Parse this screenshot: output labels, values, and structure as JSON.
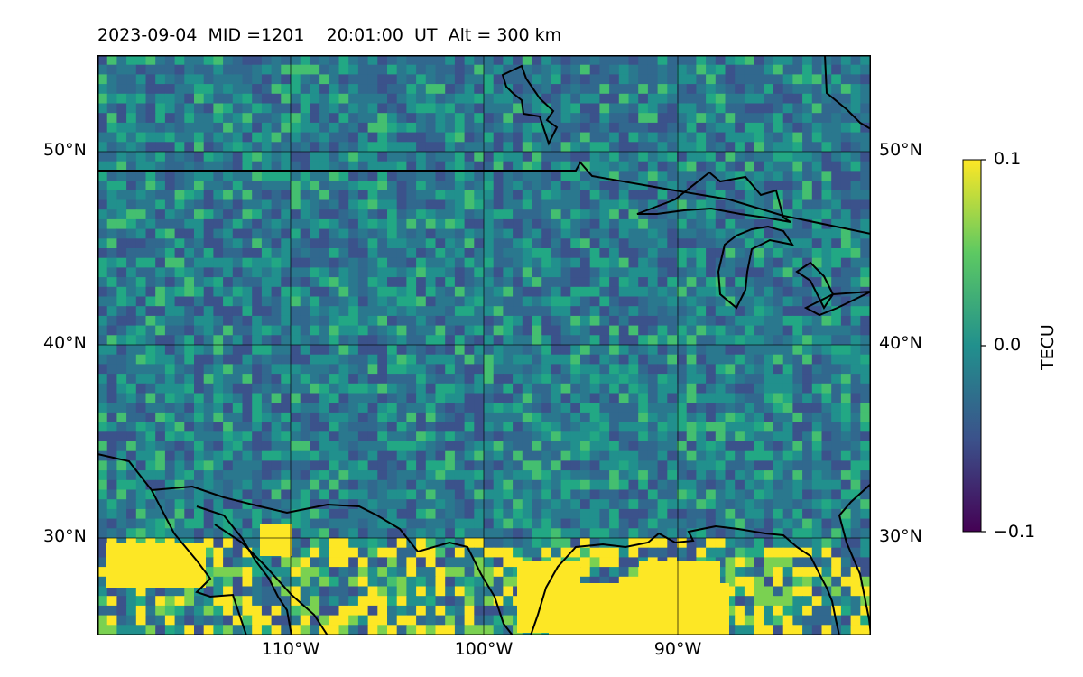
{
  "title": "2023-09-04  MID =1201    20:01:00  UT  Alt = 300 km",
  "map": {
    "projection": "PlateCarree",
    "lon_range": [
      -120,
      -80
    ],
    "lat_range": [
      25,
      55
    ],
    "gridlines": true,
    "coastlines": true,
    "borders": true,
    "lat_labels": [
      "50°N",
      "40°N",
      "30°N"
    ],
    "lon_labels": [
      "110°W",
      "100°W",
      "90°W"
    ]
  },
  "colorbar": {
    "label": "TECU",
    "cmap": "viridis",
    "range": [
      -0.1,
      0.1
    ],
    "tick_labels": [
      "0.1",
      "0.0",
      "−0.1"
    ],
    "colors": [
      "#440154",
      "#3b528b",
      "#21908d",
      "#5dc962",
      "#fde725"
    ]
  },
  "field": {
    "description_colors": {
      "background": "#2a8a8a",
      "high": "#fde725",
      "low": "#3b4e8a"
    }
  }
}
